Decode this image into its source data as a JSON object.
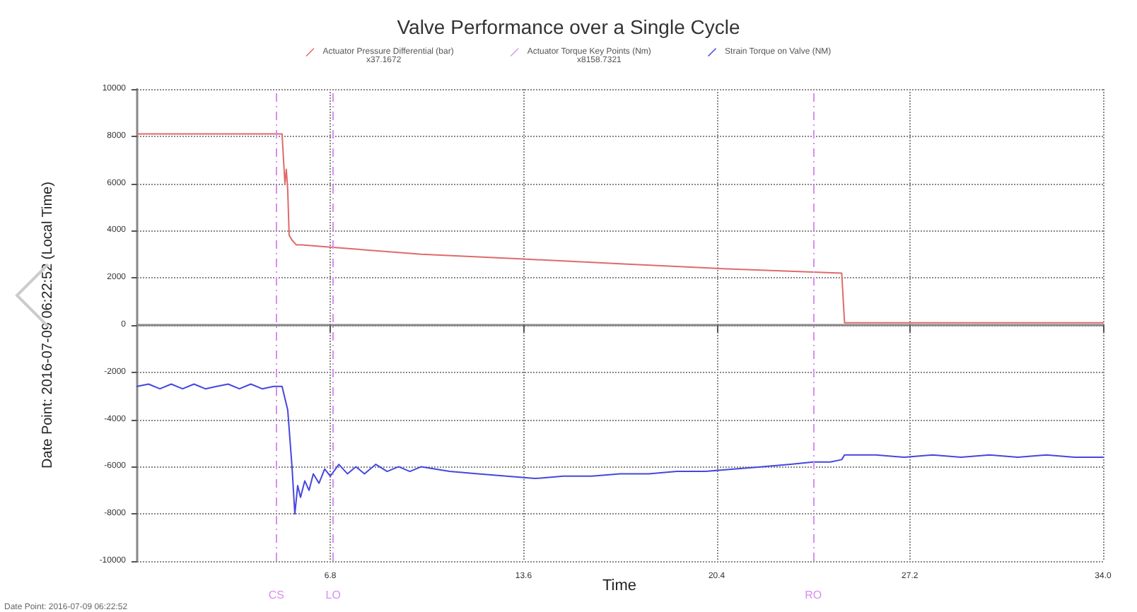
{
  "chart_data": {
    "type": "line",
    "title": "Valve Performance over a Single Cycle",
    "ylabel": "Date Point: 2016-07-09 06:22:52 (Local Time)",
    "annotations": [
      "x37.1672",
      "x8158.7321",
      "Time",
      "Date Point: 2016-07-09 06:22:52"
    ],
    "xlim": [
      0,
      34
    ],
    "xticks": [
      6.8,
      13.6,
      20.4,
      27.2,
      {
        "value": 34,
        "label": "34.0"
      }
    ],
    "ylim": [
      -10000,
      10000
    ],
    "yticks": [
      -10000,
      -8000,
      -6000,
      -4000,
      -2000,
      0,
      2000,
      4000,
      6000,
      8000,
      10000
    ],
    "grid": true,
    "legend": "top",
    "marker": "none",
    "line_style": "solid",
    "ref_lines": [
      {
        "axis": "x",
        "value": 4.9,
        "label": "CS",
        "color": "#d98ef0",
        "line_style": "dashed"
      },
      {
        "axis": "x",
        "value": 6.9,
        "label": "LO",
        "color": "#d98ef0",
        "line_style": "dashed"
      },
      {
        "axis": "x",
        "value": 23.8,
        "label": "RO",
        "color": "#d98ef0",
        "line_style": "dashed"
      }
    ],
    "series": [
      {
        "name": "Actuator Pressure Differential (bar)",
        "color": "#e06a6a",
        "x": [
          0,
          5.1,
          5.2,
          5.25,
          5.3,
          5.35,
          5.45,
          5.6,
          5.8,
          6.8,
          10,
          13.6,
          17,
          20.4,
          24.8,
          24.9,
          34
        ],
        "values": [
          8100,
          8100,
          6000,
          6600,
          5700,
          3800,
          3600,
          3400,
          3400,
          3300,
          3000,
          2800,
          2600,
          2400,
          2200,
          100,
          100
        ]
      },
      {
        "name": "Actuator Torque Key Points (Nm)",
        "color": "#c9a0f0"
      },
      {
        "name": "Strain Torque on Valve (NM)",
        "color": "#4646e0",
        "x": [
          0,
          0.4,
          0.8,
          1.2,
          1.6,
          2.0,
          2.4,
          2.8,
          3.2,
          3.6,
          4.0,
          4.4,
          4.8,
          5.1,
          5.3,
          5.45,
          5.55,
          5.65,
          5.75,
          5.9,
          6.05,
          6.2,
          6.4,
          6.6,
          6.8,
          7.1,
          7.4,
          7.7,
          8.0,
          8.4,
          8.8,
          9.2,
          9.6,
          10.0,
          11,
          12,
          13,
          14,
          15,
          16,
          17,
          18,
          19,
          20,
          21,
          22,
          23,
          23.8,
          24.4,
          24.8,
          24.9,
          26,
          27,
          28,
          29,
          30,
          31,
          32,
          33,
          34
        ],
        "values": [
          -2600,
          -2500,
          -2700,
          -2500,
          -2700,
          -2500,
          -2700,
          -2600,
          -2500,
          -2700,
          -2500,
          -2700,
          -2600,
          -2600,
          -3600,
          -6000,
          -8000,
          -6800,
          -7300,
          -6600,
          -7000,
          -6300,
          -6700,
          -6100,
          -6400,
          -5900,
          -6300,
          -6000,
          -6300,
          -5900,
          -6200,
          -6000,
          -6200,
          -6000,
          -6200,
          -6300,
          -6400,
          -6500,
          -6400,
          -6400,
          -6300,
          -6300,
          -6200,
          -6200,
          -6100,
          -6000,
          -5900,
          -5800,
          -5800,
          -5700,
          -5500,
          -5500,
          -5600,
          -5500,
          -5600,
          -5500,
          -5600,
          -5500,
          -5600,
          -5600
        ]
      }
    ]
  }
}
